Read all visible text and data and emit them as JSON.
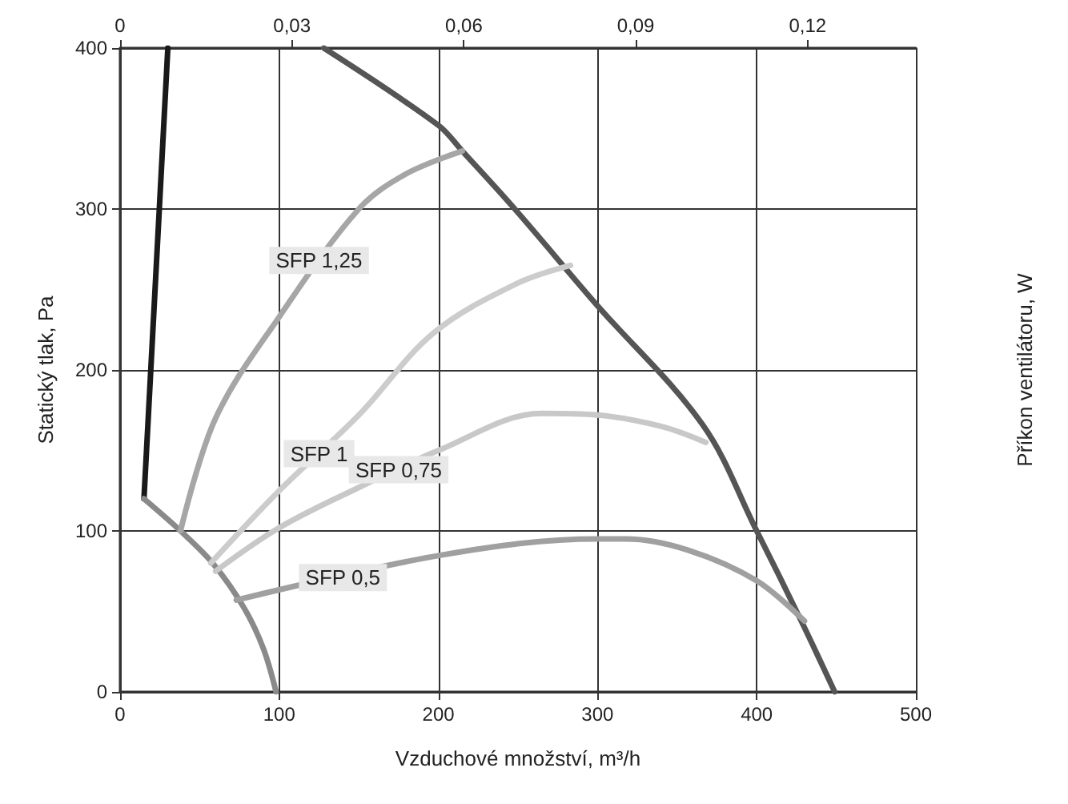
{
  "chart_data": {
    "type": "line",
    "xlabel": "Vzduchové množství, m³/h",
    "ylabel": "Statický tlak, Pa",
    "y2label": "Příkon ventilátoru, W",
    "xlim": [
      0,
      500
    ],
    "xticks": [
      0,
      100,
      200,
      300,
      400,
      500
    ],
    "ylim": [
      0,
      400
    ],
    "yticks": [
      0,
      100,
      200,
      300,
      400
    ],
    "x2lim": [
      0,
      0.1389
    ],
    "x2ticks": [
      0,
      {
        "value": 0.03,
        "label": "0,03"
      },
      {
        "value": 0.06,
        "label": "0,06"
      },
      {
        "value": 0.09,
        "label": "0,09"
      },
      {
        "value": 0.12,
        "label": "0,12"
      }
    ],
    "grid": true,
    "marker": "none",
    "line_style": "solid",
    "series": [
      {
        "color": "#1a1a1a",
        "x": [
          15,
          30
        ],
        "values": [
          120,
          400
        ]
      },
      {
        "color": "#8a8a8a",
        "x": [
          15,
          38,
          59,
          78,
          90,
          98
        ],
        "values": [
          120,
          100,
          79,
          52,
          27,
          0
        ]
      },
      {
        "color": "#555555",
        "x": [
          128,
          200,
          215,
          248,
          299,
          366,
          400,
          428,
          449
        ],
        "values": [
          400,
          352,
          336,
          300,
          241,
          166,
          100,
          44,
          0
        ]
      },
      {
        "color": "#a6a6a6",
        "x": [
          38,
          60,
          100,
          150,
          180,
          215
        ],
        "values": [
          100,
          170,
          233,
          300,
          322,
          336
        ]
      },
      {
        "color": "#cccccc",
        "x": [
          57,
          100,
          150,
          197,
          250,
          283
        ],
        "values": [
          80,
          125,
          172,
          223,
          254,
          265
        ]
      },
      {
        "color": "#c8c8c8",
        "x": [
          60,
          100,
          150,
          200,
          265,
          300,
          340,
          368
        ],
        "values": [
          75,
          102,
          127,
          150,
          173,
          172,
          165,
          155
        ]
      },
      {
        "color": "#a0a0a0",
        "x": [
          73,
          202,
          300,
          318,
          357,
          400,
          430
        ],
        "values": [
          57,
          85,
          95,
          95,
          88,
          69,
          44
        ]
      }
    ],
    "annotations": [
      {
        "text": "SFP 1,25",
        "x": 125,
        "y": 268
      },
      {
        "text": "SFP 1",
        "x": 125,
        "y": 148
      },
      {
        "text": "SFP 0,75",
        "x": 175,
        "y": 138
      },
      {
        "text": "SFP 0,5",
        "x": 140,
        "y": 71
      }
    ]
  }
}
